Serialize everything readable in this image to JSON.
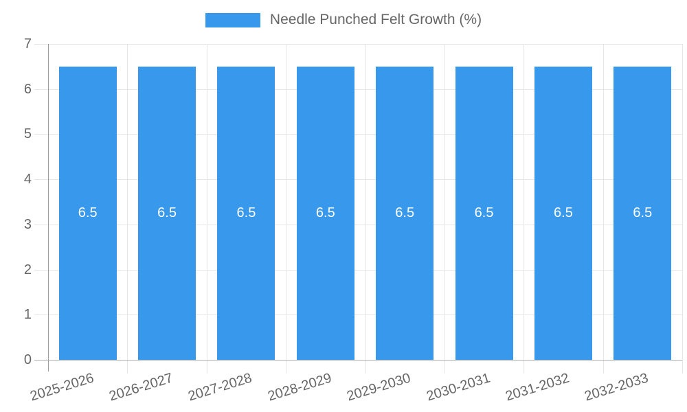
{
  "chart_data": {
    "type": "bar",
    "title": "",
    "xlabel": "",
    "ylabel": "",
    "legend": {
      "position": "top",
      "entries": [
        "Needle Punched Felt Growth (%)"
      ]
    },
    "categories": [
      "2025-2026",
      "2026-2027",
      "2027-2028",
      "2028-2029",
      "2029-2030",
      "2030-2031",
      "2031-2032",
      "2032-2033"
    ],
    "series": [
      {
        "name": "Needle Punched Felt Growth (%)",
        "values": [
          6.5,
          6.5,
          6.5,
          6.5,
          6.5,
          6.5,
          6.5,
          6.5
        ]
      }
    ],
    "bar_value_labels": [
      "6.5",
      "6.5",
      "6.5",
      "6.5",
      "6.5",
      "6.5",
      "6.5",
      "6.5"
    ],
    "ylim": [
      0,
      7
    ],
    "yticks": [
      0,
      1,
      2,
      3,
      4,
      5,
      6,
      7
    ],
    "grid": true
  },
  "colors": {
    "bar": "#3899EC",
    "grid": "#E6E6E6",
    "axis_line_y": "#9E9E9E",
    "axis_line_x": "#ABABAB",
    "tick_text": "#666666",
    "legend_text": "#666666",
    "value_label": "#FFFFFF",
    "background": "#FFFFFF"
  }
}
